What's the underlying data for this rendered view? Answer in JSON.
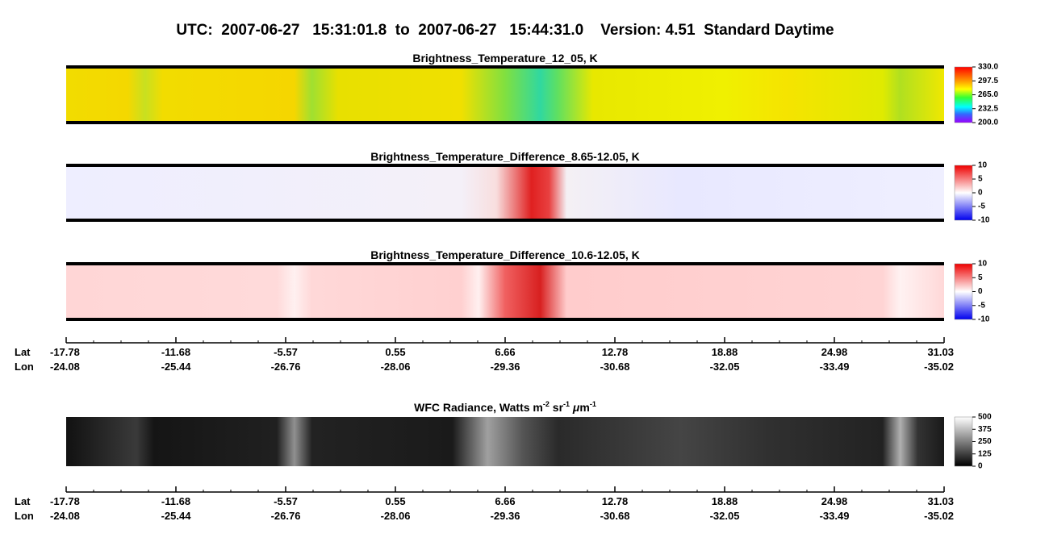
{
  "title": "UTC:  2007-06-27   15:31:01.8  to  2007-06-27   15:44:31.0    Version: 4.51  Standard Daytime",
  "panels": [
    {
      "title": "Brightness_Temperature_12_05, K",
      "colorbar": {
        "lim": [
          200,
          330
        ],
        "ticks": [
          {
            "value": 330,
            "label": "330.0"
          },
          297.5,
          {
            "value": 265,
            "label": "265.0"
          },
          232.5,
          {
            "value": 200,
            "label": "200.0"
          }
        ]
      }
    },
    {
      "title": "Brightness_Temperature_Difference_8.65-12.05, K",
      "colorbar": {
        "lim": [
          -10,
          10
        ],
        "ticks": [
          10,
          5,
          0,
          -5,
          -10
        ]
      }
    },
    {
      "title": "Brightness_Temperature_Difference_10.6-12.05, K",
      "colorbar": {
        "lim": [
          -10,
          10
        ],
        "ticks": [
          10,
          5,
          0,
          -5,
          -10
        ]
      }
    },
    {
      "title_parts": [
        "WFC Radiance, Watts m",
        "-2",
        " sr",
        "-1",
        " ",
        "μ",
        "m",
        "-1"
      ],
      "colorbar": {
        "lim": [
          0,
          500
        ],
        "ticks": [
          500,
          375,
          250,
          125,
          0
        ]
      }
    }
  ],
  "axes": [
    {
      "lat_label": "Lat",
      "lon_label": "Lon",
      "lat": [
        "-17.78",
        "-11.68",
        "-5.57",
        "0.55",
        "6.66",
        "12.78",
        "18.88",
        "24.98",
        "31.03"
      ],
      "lon": [
        "-24.08",
        "-25.44",
        "-26.76",
        "-28.06",
        "-29.36",
        "-30.68",
        "-32.05",
        "-33.49",
        "-35.02"
      ]
    },
    {
      "lat_label": "Lat",
      "lon_label": "Lon",
      "lat": [
        "-17.78",
        "-11.68",
        "-5.57",
        "0.55",
        "6.66",
        "12.78",
        "18.88",
        "24.98",
        "31.03"
      ],
      "lon": [
        "-24.08",
        "-25.44",
        "-26.76",
        "-28.06",
        "-29.36",
        "-30.68",
        "-32.05",
        "-33.49",
        "-35.02"
      ]
    }
  ]
}
